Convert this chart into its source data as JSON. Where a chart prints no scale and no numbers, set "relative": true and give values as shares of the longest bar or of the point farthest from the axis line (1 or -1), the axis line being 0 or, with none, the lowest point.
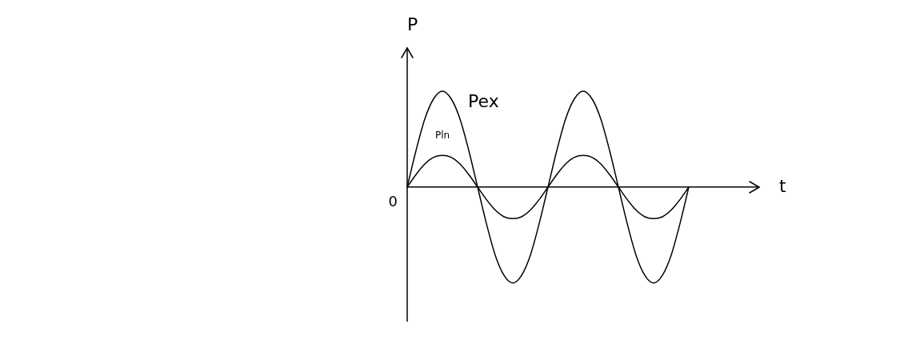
{
  "chart_data": {
    "type": "line",
    "relative": true,
    "xlabel": "t",
    "ylabel": "P",
    "annotations": [
      "0"
    ],
    "legend": false,
    "grid": false,
    "marker": "none",
    "categories": [
      null,
      null,
      null,
      null,
      null,
      null,
      null,
      null,
      null,
      null,
      null,
      null,
      null,
      null,
      null,
      null,
      null,
      null,
      null,
      null,
      null,
      null,
      null,
      null,
      null,
      null,
      null,
      null,
      null,
      null,
      null,
      null,
      null,
      null,
      null,
      null,
      null,
      null,
      null,
      null,
      null
    ],
    "series": [
      {
        "name": "Pex",
        "color": "#000000",
        "values": [
          0,
          0.38,
          0.71,
          0.92,
          1,
          0.92,
          0.71,
          0.38,
          0,
          -0.38,
          -0.71,
          -0.92,
          -1,
          -0.92,
          -0.71,
          -0.38,
          0,
          0.38,
          0.71,
          0.92,
          1,
          0.92,
          0.71,
          0.38,
          0,
          -0.38,
          -0.71,
          -0.92,
          -1,
          -0.92,
          -0.71,
          -0.38,
          0,
          null,
          null,
          null,
          null,
          null,
          null,
          null,
          null
        ]
      },
      {
        "name": "Pln",
        "color": "#000000",
        "values": [
          0,
          0.13,
          0.24,
          0.31,
          0.33,
          0.31,
          0.24,
          0.13,
          0,
          -0.13,
          -0.24,
          -0.31,
          -0.33,
          -0.31,
          -0.24,
          -0.13,
          0,
          0.13,
          0.24,
          0.31,
          0.33,
          0.31,
          0.24,
          0.13,
          0,
          -0.13,
          -0.24,
          -0.31,
          -0.33,
          -0.31,
          -0.24,
          -0.13,
          0,
          null,
          null,
          null,
          null,
          null,
          null,
          null,
          null
        ]
      }
    ]
  }
}
